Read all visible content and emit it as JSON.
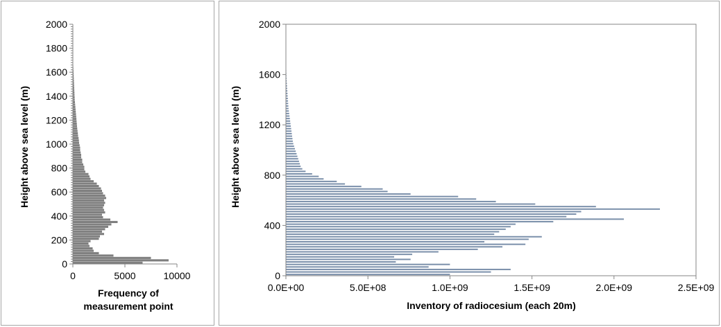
{
  "chart_data": [
    {
      "type": "bar",
      "orientation": "horizontal",
      "bar_color": "#7f7f7f",
      "ylabel": "Height above sea level (m)",
      "xlabel_lines": [
        "Frequency of",
        "measurement point"
      ],
      "xlim": [
        0,
        10000
      ],
      "ylim": [
        0,
        2000
      ],
      "x_ticks": [
        "0",
        "5000",
        "10000"
      ],
      "y_ticks": [
        "0",
        "200",
        "400",
        "600",
        "800",
        "1000",
        "1200",
        "1400",
        "1600",
        "1800",
        "2000"
      ],
      "bin_width_m": 20,
      "y": [
        0,
        20,
        40,
        60,
        80,
        100,
        120,
        140,
        160,
        180,
        200,
        220,
        240,
        260,
        280,
        300,
        320,
        340,
        360,
        380,
        400,
        420,
        440,
        460,
        480,
        500,
        520,
        540,
        560,
        580,
        600,
        620,
        640,
        660,
        680,
        700,
        720,
        740,
        760,
        780,
        800,
        820,
        840,
        860,
        880,
        900,
        920,
        940,
        960,
        980,
        1000,
        1020,
        1040,
        1060,
        1080,
        1100,
        1120,
        1140,
        1160,
        1180,
        1200,
        1220,
        1240,
        1260,
        1280,
        1300,
        1320,
        1340,
        1360,
        1380,
        1400,
        1420,
        1440,
        1460,
        1480,
        1500,
        1520,
        1540,
        1560,
        1580,
        1600,
        1620,
        1640,
        1660,
        1680,
        1700
      ],
      "values": [
        6700,
        9200,
        7500,
        3900,
        2500,
        2000,
        1900,
        1600,
        1500,
        1700,
        2500,
        2600,
        3000,
        2800,
        3100,
        3400,
        3700,
        4300,
        3600,
        2900,
        2800,
        3100,
        3000,
        2900,
        3000,
        3100,
        3000,
        3200,
        3100,
        2900,
        2800,
        2700,
        2500,
        2300,
        2000,
        1700,
        1600,
        1500,
        1200,
        1100,
        1100,
        1000,
        900,
        900,
        800,
        800,
        750,
        700,
        700,
        650,
        600,
        580,
        550,
        500,
        480,
        450,
        420,
        400,
        380,
        360,
        340,
        320,
        300,
        280,
        260,
        240,
        220,
        200,
        180,
        170,
        160,
        150,
        140,
        130,
        120,
        110,
        100,
        90,
        80,
        70,
        60,
        50,
        40,
        30,
        20,
        10
      ]
    },
    {
      "type": "bar",
      "orientation": "horizontal",
      "bar_color": "#7a8faa",
      "ylabel": "Height  above sea level (m)",
      "xlabel": "Inventory of radiocesium (each 20m)",
      "xlim": [
        0,
        2500000000
      ],
      "ylim": [
        0,
        2000
      ],
      "x_ticks": [
        "0.0E+00",
        "5.0E+08",
        "1.0E+09",
        "1.5E+09",
        "2.0E+09",
        "2.5E+09"
      ],
      "y_ticks": [
        "0",
        "400",
        "800",
        "1200",
        "1600",
        "2000"
      ],
      "bin_width_m": 20,
      "y": [
        0,
        20,
        40,
        60,
        80,
        100,
        120,
        140,
        160,
        180,
        200,
        220,
        240,
        260,
        280,
        300,
        320,
        340,
        360,
        380,
        400,
        420,
        440,
        460,
        480,
        500,
        520,
        540,
        560,
        580,
        600,
        620,
        640,
        660,
        680,
        700,
        720,
        740,
        760,
        780,
        800,
        820,
        840,
        860,
        880,
        900,
        920,
        940,
        960,
        980,
        1000,
        1020,
        1040,
        1060,
        1080,
        1100,
        1120,
        1140,
        1160,
        1180,
        1200,
        1220,
        1240,
        1260,
        1280,
        1300,
        1320,
        1340,
        1360,
        1380,
        1400,
        1420,
        1440,
        1460,
        1480,
        1500,
        1520,
        1540,
        1560,
        1580,
        1600,
        1620,
        1640,
        1660,
        1680,
        1700,
        1720,
        1740,
        1760,
        1780,
        1800,
        1820,
        1840,
        1860,
        1880,
        1900,
        1920,
        1940,
        1960,
        1980
      ],
      "values": [
        1000000000,
        1250000000,
        1370000000,
        870000000,
        1000000000,
        670000000,
        760000000,
        660000000,
        770000000,
        930000000,
        1170000000,
        1320000000,
        1460000000,
        1210000000,
        1480000000,
        1560000000,
        1270000000,
        1300000000,
        1340000000,
        1370000000,
        1400000000,
        1630000000,
        2060000000,
        1710000000,
        1770000000,
        1800000000,
        2280000000,
        1890000000,
        1520000000,
        1280000000,
        1160000000,
        1050000000,
        760000000,
        620000000,
        590000000,
        460000000,
        360000000,
        310000000,
        230000000,
        200000000,
        160000000,
        120000000,
        100000000,
        90000000,
        85000000,
        80000000,
        75000000,
        70000000,
        65000000,
        60000000,
        55000000,
        50000000,
        45000000,
        42000000,
        40000000,
        38000000,
        36000000,
        34000000,
        32000000,
        30000000,
        28000000,
        26000000,
        24000000,
        22000000,
        20000000,
        18000000,
        16000000,
        15000000,
        14000000,
        13000000,
        12000000,
        11000000,
        10000000,
        9000000,
        8000000,
        7000000,
        6000000,
        5000000,
        4000000,
        3500000,
        3000000,
        2500000,
        2000000,
        1800000,
        1600000,
        1400000,
        1200000,
        1000000,
        900000,
        800000,
        700000,
        600000,
        500000,
        400000,
        300000,
        200000,
        150000,
        100000,
        50000,
        20000
      ]
    }
  ]
}
